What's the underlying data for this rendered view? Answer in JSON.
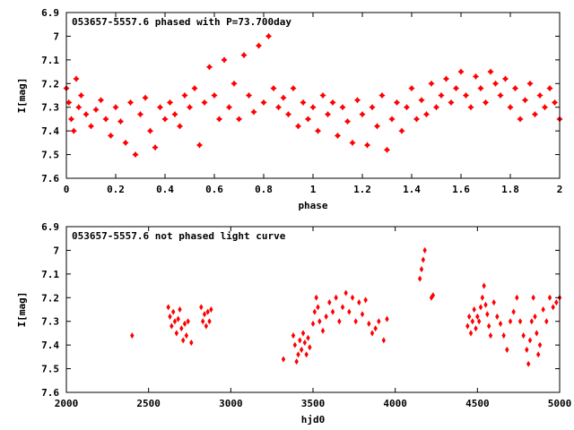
{
  "chart_data": [
    {
      "type": "scatter",
      "title": "053657-5557.6 phased with P=73.700day",
      "xlabel": "phase",
      "ylabel": "I[mag]",
      "xlim": [
        0,
        2
      ],
      "ylim": [
        7.6,
        6.9
      ],
      "y_inverted": true,
      "x_ticks": [
        "0",
        "0.2",
        "0.4",
        "0.6",
        "0.8",
        "1",
        "1.2",
        "1.4",
        "1.6",
        "1.8",
        "2"
      ],
      "y_ticks": [
        "6.9",
        "7",
        "7.1",
        "7.2",
        "7.3",
        "7.4",
        "7.5",
        "7.6"
      ],
      "x_tick_values": [
        0,
        0.2,
        0.4,
        0.6,
        0.8,
        1,
        1.2,
        1.4,
        1.6,
        1.8,
        2
      ],
      "y_tick_values": [
        6.9,
        7.0,
        7.1,
        7.2,
        7.3,
        7.4,
        7.5,
        7.6
      ],
      "marker": "filled-star",
      "color": "#ff0000",
      "grid": false,
      "points": [
        [
          0.0,
          7.22
        ],
        [
          0.01,
          7.28
        ],
        [
          0.02,
          7.35
        ],
        [
          0.03,
          7.4
        ],
        [
          0.04,
          7.18
        ],
        [
          0.05,
          7.3
        ],
        [
          0.06,
          7.25
        ],
        [
          0.08,
          7.33
        ],
        [
          0.1,
          7.38
        ],
        [
          0.12,
          7.31
        ],
        [
          0.14,
          7.27
        ],
        [
          0.16,
          7.35
        ],
        [
          0.18,
          7.42
        ],
        [
          0.2,
          7.3
        ],
        [
          0.22,
          7.36
        ],
        [
          0.24,
          7.45
        ],
        [
          0.26,
          7.28
        ],
        [
          0.28,
          7.5
        ],
        [
          0.3,
          7.33
        ],
        [
          0.32,
          7.26
        ],
        [
          0.34,
          7.4
        ],
        [
          0.36,
          7.47
        ],
        [
          0.38,
          7.3
        ],
        [
          0.4,
          7.35
        ],
        [
          0.42,
          7.28
        ],
        [
          0.44,
          7.33
        ],
        [
          0.46,
          7.38
        ],
        [
          0.48,
          7.25
        ],
        [
          0.5,
          7.3
        ],
        [
          0.52,
          7.22
        ],
        [
          0.54,
          7.46
        ],
        [
          0.56,
          7.28
        ],
        [
          0.58,
          7.13
        ],
        [
          0.6,
          7.25
        ],
        [
          0.62,
          7.35
        ],
        [
          0.64,
          7.1
        ],
        [
          0.66,
          7.3
        ],
        [
          0.68,
          7.2
        ],
        [
          0.7,
          7.35
        ],
        [
          0.72,
          7.08
        ],
        [
          0.74,
          7.25
        ],
        [
          0.76,
          7.32
        ],
        [
          0.78,
          7.04
        ],
        [
          0.8,
          7.28
        ],
        [
          0.82,
          7.0
        ],
        [
          0.84,
          7.22
        ],
        [
          0.86,
          7.3
        ],
        [
          0.88,
          7.26
        ],
        [
          0.9,
          7.33
        ],
        [
          0.92,
          7.22
        ],
        [
          0.94,
          7.38
        ],
        [
          0.96,
          7.28
        ],
        [
          0.98,
          7.35
        ],
        [
          1.0,
          7.3
        ],
        [
          1.02,
          7.4
        ],
        [
          1.04,
          7.25
        ],
        [
          1.06,
          7.33
        ],
        [
          1.08,
          7.28
        ],
        [
          1.1,
          7.42
        ],
        [
          1.12,
          7.3
        ],
        [
          1.14,
          7.36
        ],
        [
          1.16,
          7.45
        ],
        [
          1.18,
          7.27
        ],
        [
          1.2,
          7.33
        ],
        [
          1.22,
          7.46
        ],
        [
          1.24,
          7.3
        ],
        [
          1.26,
          7.38
        ],
        [
          1.28,
          7.25
        ],
        [
          1.3,
          7.48
        ],
        [
          1.32,
          7.35
        ],
        [
          1.34,
          7.28
        ],
        [
          1.36,
          7.4
        ],
        [
          1.38,
          7.3
        ],
        [
          1.4,
          7.22
        ],
        [
          1.42,
          7.35
        ],
        [
          1.44,
          7.27
        ],
        [
          1.46,
          7.33
        ],
        [
          1.48,
          7.2
        ],
        [
          1.5,
          7.3
        ],
        [
          1.52,
          7.25
        ],
        [
          1.54,
          7.18
        ],
        [
          1.56,
          7.28
        ],
        [
          1.58,
          7.22
        ],
        [
          1.6,
          7.15
        ],
        [
          1.62,
          7.25
        ],
        [
          1.64,
          7.3
        ],
        [
          1.66,
          7.17
        ],
        [
          1.68,
          7.22
        ],
        [
          1.7,
          7.28
        ],
        [
          1.72,
          7.15
        ],
        [
          1.74,
          7.2
        ],
        [
          1.76,
          7.25
        ],
        [
          1.78,
          7.18
        ],
        [
          1.8,
          7.3
        ],
        [
          1.82,
          7.22
        ],
        [
          1.84,
          7.35
        ],
        [
          1.86,
          7.27
        ],
        [
          1.88,
          7.2
        ],
        [
          1.9,
          7.33
        ],
        [
          1.92,
          7.25
        ],
        [
          1.94,
          7.3
        ],
        [
          1.96,
          7.22
        ],
        [
          1.98,
          7.28
        ],
        [
          2.0,
          7.35
        ]
      ]
    },
    {
      "type": "scatter",
      "title": "053657-5557.6 not phased light curve",
      "xlabel": "hjd0",
      "ylabel": "I[mag]",
      "xlim": [
        2000,
        5000
      ],
      "ylim": [
        7.6,
        6.9
      ],
      "y_inverted": true,
      "x_ticks": [
        "2000",
        "2500",
        "3000",
        "3500",
        "4000",
        "4500",
        "5000"
      ],
      "y_ticks": [
        "6.9",
        "7",
        "7.1",
        "7.2",
        "7.3",
        "7.4",
        "7.5",
        "7.6"
      ],
      "x_tick_values": [
        2000,
        2500,
        3000,
        3500,
        4000,
        4500,
        5000
      ],
      "y_tick_values": [
        6.9,
        7.0,
        7.1,
        7.2,
        7.3,
        7.4,
        7.5,
        7.6
      ],
      "marker": "filled-diamond",
      "color": "#ff0000",
      "grid": false,
      "points": [
        [
          2400,
          7.36
        ],
        [
          2620,
          7.24
        ],
        [
          2630,
          7.28
        ],
        [
          2640,
          7.32
        ],
        [
          2650,
          7.26
        ],
        [
          2660,
          7.3
        ],
        [
          2670,
          7.35
        ],
        [
          2680,
          7.29
        ],
        [
          2690,
          7.25
        ],
        [
          2700,
          7.33
        ],
        [
          2710,
          7.38
        ],
        [
          2720,
          7.31
        ],
        [
          2730,
          7.36
        ],
        [
          2740,
          7.3
        ],
        [
          2760,
          7.39
        ],
        [
          2820,
          7.24
        ],
        [
          2830,
          7.3
        ],
        [
          2840,
          7.27
        ],
        [
          2850,
          7.32
        ],
        [
          2860,
          7.26
        ],
        [
          2870,
          7.3
        ],
        [
          2880,
          7.25
        ],
        [
          3320,
          7.46
        ],
        [
          3380,
          7.36
        ],
        [
          3390,
          7.4
        ],
        [
          3400,
          7.47
        ],
        [
          3410,
          7.44
        ],
        [
          3420,
          7.38
        ],
        [
          3430,
          7.42
        ],
        [
          3440,
          7.35
        ],
        [
          3450,
          7.39
        ],
        [
          3460,
          7.44
        ],
        [
          3470,
          7.37
        ],
        [
          3480,
          7.41
        ],
        [
          3500,
          7.31
        ],
        [
          3510,
          7.26
        ],
        [
          3520,
          7.2
        ],
        [
          3530,
          7.24
        ],
        [
          3540,
          7.3
        ],
        [
          3560,
          7.34
        ],
        [
          3580,
          7.28
        ],
        [
          3600,
          7.22
        ],
        [
          3620,
          7.26
        ],
        [
          3640,
          7.2
        ],
        [
          3660,
          7.3
        ],
        [
          3680,
          7.24
        ],
        [
          3700,
          7.18
        ],
        [
          3720,
          7.26
        ],
        [
          3740,
          7.2
        ],
        [
          3760,
          7.3
        ],
        [
          3780,
          7.22
        ],
        [
          3800,
          7.27
        ],
        [
          3820,
          7.21
        ],
        [
          3840,
          7.31
        ],
        [
          3860,
          7.35
        ],
        [
          3880,
          7.33
        ],
        [
          3900,
          7.3
        ],
        [
          3930,
          7.38
        ],
        [
          3950,
          7.29
        ],
        [
          4150,
          7.12
        ],
        [
          4160,
          7.08
        ],
        [
          4170,
          7.04
        ],
        [
          4180,
          7.0
        ],
        [
          4220,
          7.2
        ],
        [
          4230,
          7.19
        ],
        [
          4440,
          7.32
        ],
        [
          4450,
          7.28
        ],
        [
          4460,
          7.35
        ],
        [
          4470,
          7.3
        ],
        [
          4480,
          7.25
        ],
        [
          4490,
          7.33
        ],
        [
          4500,
          7.28
        ],
        [
          4510,
          7.3
        ],
        [
          4520,
          7.24
        ],
        [
          4530,
          7.2
        ],
        [
          4540,
          7.15
        ],
        [
          4550,
          7.23
        ],
        [
          4560,
          7.27
        ],
        [
          4570,
          7.32
        ],
        [
          4580,
          7.36
        ],
        [
          4600,
          7.22
        ],
        [
          4620,
          7.28
        ],
        [
          4640,
          7.31
        ],
        [
          4660,
          7.36
        ],
        [
          4680,
          7.42
        ],
        [
          4700,
          7.3
        ],
        [
          4720,
          7.26
        ],
        [
          4740,
          7.2
        ],
        [
          4760,
          7.3
        ],
        [
          4780,
          7.36
        ],
        [
          4800,
          7.42
        ],
        [
          4810,
          7.48
        ],
        [
          4820,
          7.38
        ],
        [
          4830,
          7.3
        ],
        [
          4840,
          7.2
        ],
        [
          4850,
          7.28
        ],
        [
          4860,
          7.35
        ],
        [
          4870,
          7.44
        ],
        [
          4880,
          7.4
        ],
        [
          4900,
          7.25
        ],
        [
          4920,
          7.3
        ],
        [
          4940,
          7.2
        ],
        [
          4960,
          7.24
        ],
        [
          4980,
          7.22
        ],
        [
          5000,
          7.2
        ]
      ]
    }
  ]
}
